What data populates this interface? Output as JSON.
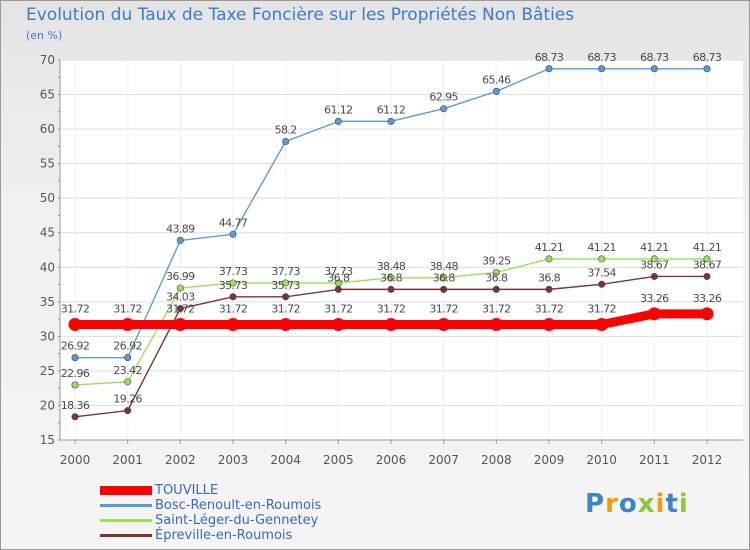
{
  "title": "Evolution du Taux de Taxe Foncière sur les Propriétés Non Bâties",
  "unit_label": "(en %)",
  "colors": {
    "touville": "#ff0000",
    "bosc": "#5b9bd5",
    "saint_leger": "#99e05a",
    "epreville": "#7a3434",
    "grid": "#dddddd",
    "axis": "#9a9a9a",
    "text": "#555555"
  },
  "chart_data": {
    "type": "line",
    "title": "Evolution du Taux de Taxe Foncière sur les Propriétés Non Bâties",
    "ylabel": "(en %)",
    "xlabel": "",
    "ylim": [
      15,
      70
    ],
    "y_ticks": [
      15,
      20,
      25,
      30,
      35,
      40,
      45,
      50,
      55,
      60,
      65,
      70
    ],
    "categories": [
      "2000",
      "2001",
      "2002",
      "2003",
      "2004",
      "2005",
      "2006",
      "2007",
      "2008",
      "2009",
      "2010",
      "2011",
      "2012"
    ],
    "series": [
      {
        "name": "TOUVILLE",
        "key": "touville",
        "values": [
          31.72,
          31.72,
          31.72,
          31.72,
          31.72,
          31.72,
          31.72,
          31.72,
          31.72,
          31.72,
          31.72,
          33.26,
          33.26
        ],
        "labels": [
          "31.72",
          "31.72",
          "31.72",
          "31.72",
          "31.72",
          "31.72",
          "31.72",
          "31.72",
          "31.72",
          "31.72",
          "31.72",
          "33.26",
          "33.26"
        ]
      },
      {
        "name": "Bosc-Renoult-en-Roumois",
        "key": "bosc",
        "values": [
          26.92,
          26.92,
          43.89,
          44.77,
          58.2,
          61.12,
          61.12,
          62.95,
          65.46,
          68.73,
          68.73,
          68.73,
          68.73
        ],
        "labels": [
          "26.92",
          "26.92",
          "43.89",
          "44.77",
          "58.2",
          "61.12",
          "61.12",
          "62.95",
          "65.46",
          "68.73",
          "68.73",
          "68.73",
          "68.73"
        ]
      },
      {
        "name": "Saint-Léger-du-Gennetey",
        "key": "saint_leger",
        "values": [
          22.96,
          23.42,
          36.99,
          37.73,
          37.73,
          37.73,
          38.48,
          38.48,
          39.25,
          41.21,
          41.21,
          41.21,
          41.21
        ],
        "labels": [
          "22.96",
          "23.42",
          "36.99",
          "37.73",
          "37.73",
          "37.73",
          "38.48",
          "38.48",
          "39.25",
          "41.21",
          "41.21",
          "41.21",
          "41.21"
        ]
      },
      {
        "name": "Épreville-en-Roumois",
        "key": "epreville",
        "values": [
          18.36,
          19.26,
          34.03,
          35.73,
          35.73,
          36.8,
          36.8,
          36.8,
          36.8,
          36.8,
          37.54,
          38.67,
          38.67
        ],
        "labels": [
          "18.36",
          "19.26",
          "34.03",
          "35.73",
          "35.73",
          "36.8",
          "36.8",
          "36.8",
          "36.8",
          "36.8",
          "37.54",
          "38.67",
          "38.67"
        ]
      }
    ]
  },
  "legend": [
    {
      "label": "TOUVILLE",
      "key": "touville"
    },
    {
      "label": "Bosc-Renoult-en-Roumois",
      "key": "bosc"
    },
    {
      "label": "Saint-Léger-du-Gennetey",
      "key": "saint_leger"
    },
    {
      "label": "Épreville-en-Roumois",
      "key": "epreville"
    }
  ],
  "logo": {
    "letters": [
      "P",
      "r",
      "o",
      "x",
      "i",
      "t",
      "i"
    ],
    "colors": [
      "#3b86c9",
      "#f39c12",
      "#3b86c9",
      "#8cc63f",
      "#f39c12",
      "#3b86c9",
      "#8cc63f"
    ]
  }
}
